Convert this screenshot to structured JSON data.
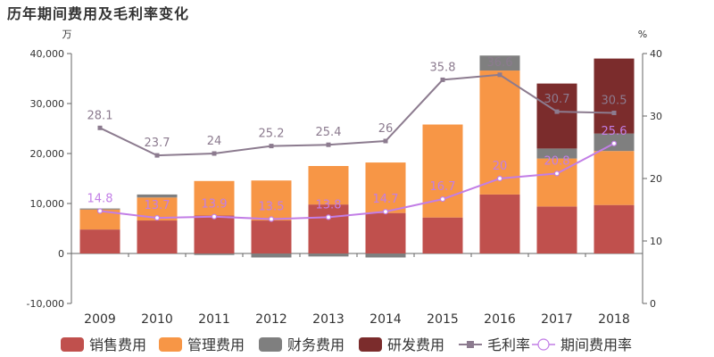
{
  "chart_data": {
    "type": "bar",
    "title": "历年期间费用及毛利率变化",
    "y_left_unit": "万",
    "y_right_unit": "%",
    "y_left_ticks": [
      "-10,000",
      "0",
      "10,000",
      "20,000",
      "30,000",
      "40,000"
    ],
    "y_right_ticks": [
      "0",
      "10",
      "20",
      "30",
      "40"
    ],
    "ylim_left": [
      -10000,
      40000
    ],
    "ylim_right": [
      0,
      40
    ],
    "categories": [
      "2009",
      "2010",
      "2011",
      "2012",
      "2013",
      "2014",
      "2015",
      "2016",
      "2017",
      "2018"
    ],
    "series": [
      {
        "name": "销售费用",
        "kind": "bar",
        "color": "#c0504d",
        "values": [
          4800,
          6600,
          7600,
          6600,
          9800,
          8100,
          7200,
          11800,
          9400,
          9700
        ]
      },
      {
        "name": "管理费用",
        "kind": "bar",
        "color": "#f79646",
        "values": [
          4000,
          4600,
          6900,
          8000,
          7700,
          10100,
          18600,
          24800,
          9600,
          10800
        ]
      },
      {
        "name": "财务费用",
        "kind": "bar",
        "color": "#7f7f7f",
        "values": [
          200,
          600,
          -300,
          -800,
          -600,
          -800,
          0,
          3000,
          2000,
          3500
        ]
      },
      {
        "name": "研发费用",
        "kind": "bar",
        "color": "#7b2c2c",
        "values": [
          0,
          0,
          0,
          0,
          0,
          0,
          0,
          0,
          13000,
          15000
        ]
      },
      {
        "name": "毛利率",
        "kind": "line",
        "color": "#8c7b8f",
        "values": [
          28.1,
          23.7,
          24,
          25.2,
          25.4,
          26,
          35.8,
          36.6,
          30.7,
          30.5
        ],
        "labels": [
          "28.1",
          "23.7",
          "24",
          "25.2",
          "25.4",
          "26",
          "35.8",
          "36.6",
          "30.7",
          "30.5"
        ]
      },
      {
        "name": "期间费用率",
        "kind": "line",
        "color": "#c27ee6",
        "values": [
          14.8,
          13.7,
          13.9,
          13.5,
          13.8,
          14.7,
          16.7,
          20,
          20.8,
          25.6
        ],
        "labels": [
          "14.8",
          "13.7",
          "13.9",
          "13.5",
          "13.8",
          "14.7",
          "16.7",
          "20",
          "20.8",
          "25.6"
        ]
      }
    ],
    "legend_position": "bottom",
    "grid": false
  }
}
